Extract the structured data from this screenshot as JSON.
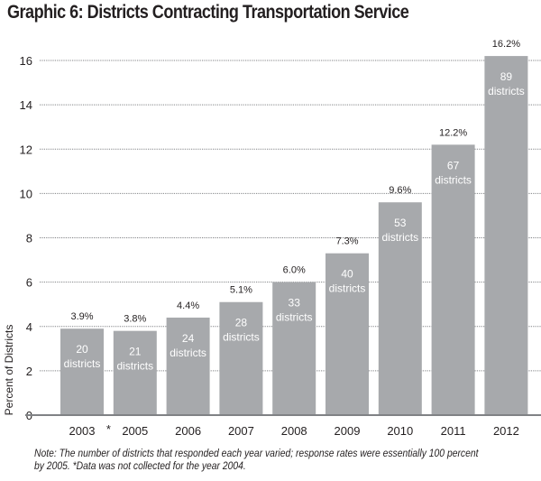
{
  "chart_data": {
    "type": "bar",
    "title": "Graphic 6: Districts Contracting Transportation Service",
    "xlabel": "",
    "ylabel": "Percent of Districts",
    "ylim": [
      0,
      16
    ],
    "yticks": [
      0,
      2,
      4,
      6,
      8,
      10,
      12,
      14,
      16
    ],
    "grid": true,
    "categories": [
      "2003",
      "2005",
      "2006",
      "2007",
      "2008",
      "2009",
      "2010",
      "2011",
      "2012"
    ],
    "values": [
      3.9,
      3.8,
      4.4,
      5.1,
      6.0,
      7.3,
      9.6,
      12.2,
      16.2
    ],
    "value_labels": [
      "3.9%",
      "3.8%",
      "4.4%",
      "5.1%",
      "6.0%",
      "7.3%",
      "9.6%",
      "12.2%",
      "16.2%"
    ],
    "district_counts": [
      20,
      21,
      24,
      28,
      33,
      40,
      53,
      67,
      89
    ],
    "count_suffix": "districts",
    "gap_marker": "*",
    "bar_color": "#a7a9ac",
    "note": "Note: The number of districts that responded each year varied; response rates were essentially 100 percent by 2005. *Data was not collected for the year 2004."
  }
}
